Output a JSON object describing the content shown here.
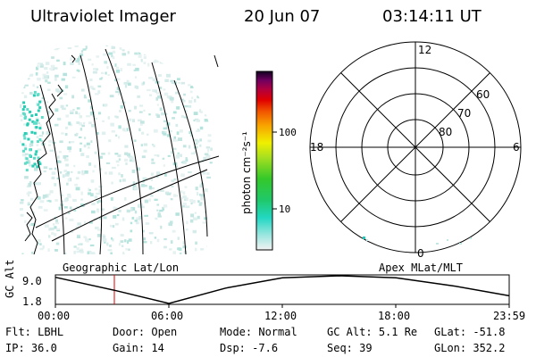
{
  "header": {
    "instrument": "Ultraviolet Imager",
    "date": "20 Jun 07",
    "time": "03:14:11 UT"
  },
  "colorbar": {
    "unit_label": "photon cm⁻²s⁻¹",
    "ticks": [
      "100",
      "10"
    ]
  },
  "polar_plot": {
    "mlt_labels": {
      "top": "12",
      "left": "18",
      "right": "6",
      "bottom": "0"
    },
    "lat_labels": [
      "60",
      "70",
      "80"
    ]
  },
  "panels": {
    "left_caption": "Geographic Lat/Lon",
    "right_caption": "Apex MLat/MLT"
  },
  "altitude_plot": {
    "ylabel": "GC Alt",
    "y_ticks": [
      "9.0",
      "1.8"
    ],
    "x_ticks": [
      "00:00",
      "06:00",
      "12:00",
      "18:00",
      "23:59"
    ]
  },
  "chart_data": {
    "type": "line",
    "ylabel": "GC Alt",
    "x": [
      "00:00",
      "03:14",
      "06:00",
      "09:00",
      "12:00",
      "15:00",
      "18:00",
      "21:00",
      "23:59"
    ],
    "series": [
      {
        "values": [
          8.6,
          5.1,
          1.8,
          5.8,
          8.5,
          9.0,
          8.5,
          6.4,
          3.8
        ]
      }
    ],
    "ylim": [
      1.8,
      9.0
    ],
    "marker_time": "03:14:11 UT"
  },
  "info": {
    "row1": [
      {
        "label": "Flt:",
        "value": "LBHL"
      },
      {
        "label": "Door:",
        "value": "Open"
      },
      {
        "label": "Mode:",
        "value": "Normal"
      },
      {
        "label": "GC Alt:",
        "value": "5.1 Re"
      },
      {
        "label": "GLat:",
        "value": "-51.8"
      }
    ],
    "row2": [
      {
        "label": "IP:",
        "value": "36.0"
      },
      {
        "label": "Gain:",
        "value": "14"
      },
      {
        "label": "Dsp:",
        "value": "-7.6"
      },
      {
        "label": "Seq:",
        "value": "39"
      },
      {
        "label": "GLon:",
        "value": "352.2"
      }
    ]
  }
}
